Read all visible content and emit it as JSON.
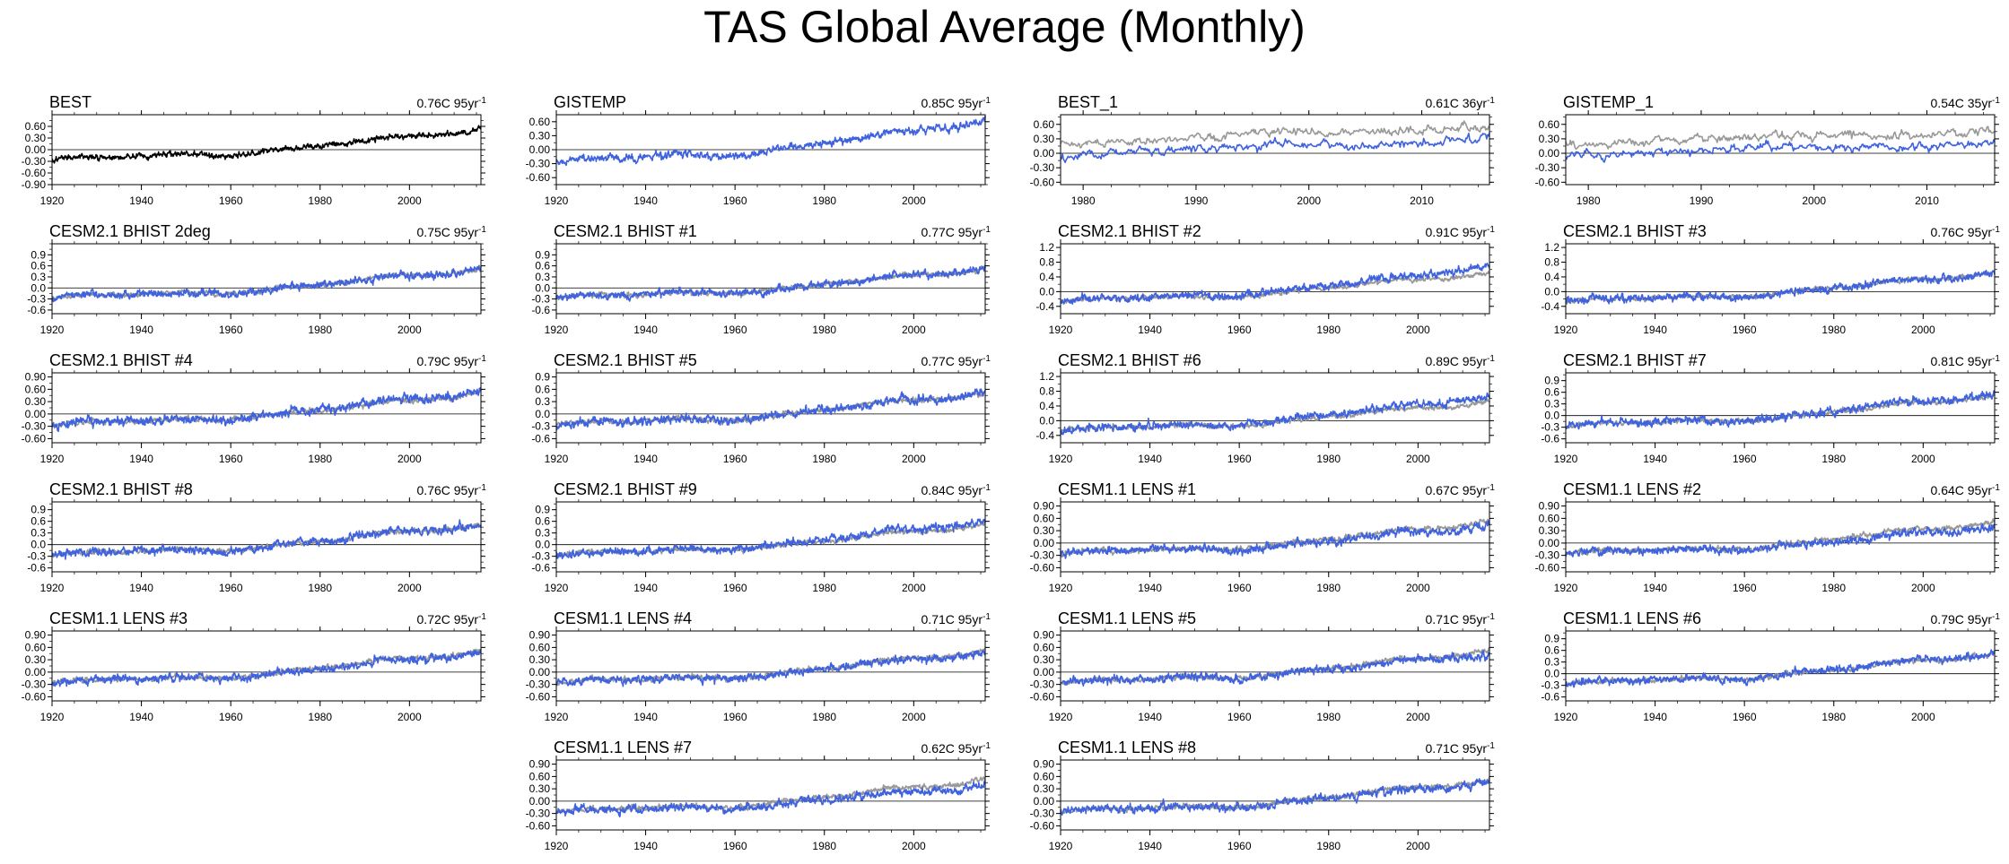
{
  "title": "TAS Global Average (Monthly)",
  "colors": {
    "obs": "#000000",
    "obs_ref": "#999999",
    "model": "#3f62de",
    "axis": "#000000"
  },
  "chart_data": [
    {
      "type": "line",
      "name": "BEST",
      "trend": "0.76C",
      "period": "95yr",
      "xlim": [
        1920,
        2016
      ],
      "xticks": [
        1920,
        1940,
        1960,
        1980,
        2000
      ],
      "ylim": [
        -0.9,
        0.9
      ],
      "yticks": [
        -0.9,
        -0.6,
        -0.3,
        0.0,
        0.3,
        0.6
      ],
      "ytick_labels": [
        "-0.90",
        "-0.60",
        "-0.30",
        "0.00",
        "0.30",
        "0.60"
      ],
      "series": [
        {
          "name": "BEST",
          "color": "#000000",
          "trend": 0.76,
          "noise": 0.08
        }
      ]
    },
    {
      "type": "line",
      "name": "GISTEMP",
      "trend": "0.85C",
      "period": "95yr",
      "xlim": [
        1920,
        2016
      ],
      "xticks": [
        1920,
        1940,
        1960,
        1980,
        2000
      ],
      "ylim": [
        -0.75,
        0.75
      ],
      "yticks": [
        -0.6,
        -0.3,
        0.0,
        0.3,
        0.6
      ],
      "ytick_labels": [
        "-0.60",
        "-0.30",
        "0.00",
        "0.30",
        "0.60"
      ],
      "series": [
        {
          "name": "GISTEMP",
          "color": "#3f62de",
          "trend": 0.85,
          "noise": 0.09
        }
      ]
    },
    {
      "type": "line",
      "name": "BEST_1",
      "trend": "0.61C",
      "period": "36yr",
      "xlim": [
        1978,
        2016
      ],
      "xticks": [
        1980,
        1990,
        2000,
        2010
      ],
      "ylim": [
        -0.65,
        0.8
      ],
      "yticks": [
        -0.6,
        -0.3,
        0.0,
        0.3,
        0.6
      ],
      "ytick_labels": [
        "-0.60",
        "-0.30",
        "0.00",
        "0.30",
        "0.60"
      ],
      "series": [
        {
          "name": "reference",
          "color": "#999999",
          "trend": 0.61,
          "offset": 0.2,
          "noise": 0.1
        },
        {
          "name": "BEST_1",
          "color": "#3f62de",
          "trend": 0.61,
          "offset": -0.05,
          "noise": 0.1
        }
      ]
    },
    {
      "type": "line",
      "name": "GISTEMP_1",
      "trend": "0.54C",
      "period": "35yr",
      "xlim": [
        1978,
        2016
      ],
      "xticks": [
        1980,
        1990,
        2000,
        2010
      ],
      "ylim": [
        -0.65,
        0.8
      ],
      "yticks": [
        -0.6,
        -0.3,
        0.0,
        0.3,
        0.6
      ],
      "ytick_labels": [
        "-0.60",
        "-0.30",
        "0.00",
        "0.30",
        "0.60"
      ],
      "series": [
        {
          "name": "reference",
          "color": "#999999",
          "trend": 0.54,
          "offset": 0.2,
          "noise": 0.1
        },
        {
          "name": "GISTEMP_1",
          "color": "#3f62de",
          "trend": 0.54,
          "offset": -0.05,
          "noise": 0.1
        }
      ]
    },
    {
      "type": "line",
      "name": "CESM2.1 BHIST 2deg",
      "trend": "0.75C",
      "period": "95yr",
      "xlim": [
        1920,
        2016
      ],
      "xticks": [
        1920,
        1940,
        1960,
        1980,
        2000
      ],
      "ylim": [
        -0.7,
        1.2
      ],
      "yticks": [
        -0.6,
        -0.3,
        0.0,
        0.3,
        0.6,
        0.9
      ],
      "ytick_labels": [
        "-0.6",
        "-0.3",
        "0.0",
        "0.3",
        "0.6",
        "0.9"
      ],
      "series": [
        {
          "name": "BEST",
          "color": "#999999",
          "trend": 0.76,
          "noise": 0.07
        },
        {
          "name": "CESM2.1 BHIST 2deg",
          "color": "#3f62de",
          "trend": 0.75,
          "noise": 0.12
        }
      ]
    },
    {
      "type": "line",
      "name": "CESM2.1 BHIST #1",
      "trend": "0.77C",
      "period": "95yr",
      "xlim": [
        1920,
        2016
      ],
      "xticks": [
        1920,
        1940,
        1960,
        1980,
        2000
      ],
      "ylim": [
        -0.7,
        1.2
      ],
      "yticks": [
        -0.6,
        -0.3,
        0.0,
        0.3,
        0.6,
        0.9
      ],
      "ytick_labels": [
        "-0.6",
        "-0.3",
        "0.0",
        "0.3",
        "0.6",
        "0.9"
      ],
      "series": [
        {
          "name": "BEST",
          "color": "#999999",
          "trend": 0.76,
          "noise": 0.07
        },
        {
          "name": "CESM2.1 BHIST #1",
          "color": "#3f62de",
          "trend": 0.77,
          "noise": 0.12
        }
      ]
    },
    {
      "type": "line",
      "name": "CESM2.1 BHIST #2",
      "trend": "0.91C",
      "period": "95yr",
      "xlim": [
        1920,
        2016
      ],
      "xticks": [
        1920,
        1940,
        1960,
        1980,
        2000
      ],
      "ylim": [
        -0.6,
        1.3
      ],
      "yticks": [
        -0.4,
        0.0,
        0.4,
        0.8,
        1.2
      ],
      "ytick_labels": [
        "-0.4",
        "0.0",
        "0.4",
        "0.8",
        "1.2"
      ],
      "series": [
        {
          "name": "BEST",
          "color": "#999999",
          "trend": 0.76,
          "noise": 0.07
        },
        {
          "name": "CESM2.1 BHIST #2",
          "color": "#3f62de",
          "trend": 0.91,
          "noise": 0.12
        }
      ]
    },
    {
      "type": "line",
      "name": "CESM2.1 BHIST #3",
      "trend": "0.76C",
      "period": "95yr",
      "xlim": [
        1920,
        2016
      ],
      "xticks": [
        1920,
        1940,
        1960,
        1980,
        2000
      ],
      "ylim": [
        -0.6,
        1.3
      ],
      "yticks": [
        -0.4,
        0.0,
        0.4,
        0.8,
        1.2
      ],
      "ytick_labels": [
        "-0.4",
        "0.0",
        "0.4",
        "0.8",
        "1.2"
      ],
      "series": [
        {
          "name": "BEST",
          "color": "#999999",
          "trend": 0.76,
          "noise": 0.07
        },
        {
          "name": "CESM2.1 BHIST #3",
          "color": "#3f62de",
          "trend": 0.76,
          "noise": 0.12
        }
      ]
    },
    {
      "type": "line",
      "name": "CESM2.1 BHIST #4",
      "trend": "0.79C",
      "period": "95yr",
      "xlim": [
        1920,
        2016
      ],
      "xticks": [
        1920,
        1940,
        1960,
        1980,
        2000
      ],
      "ylim": [
        -0.7,
        1.0
      ],
      "yticks": [
        -0.6,
        -0.3,
        0.0,
        0.3,
        0.6,
        0.9
      ],
      "ytick_labels": [
        "-0.60",
        "-0.30",
        "0.00",
        "0.30",
        "0.60",
        "0.90"
      ],
      "series": [
        {
          "name": "BEST",
          "color": "#999999",
          "trend": 0.76,
          "noise": 0.07
        },
        {
          "name": "CESM2.1 BHIST #4",
          "color": "#3f62de",
          "trend": 0.79,
          "noise": 0.12
        }
      ]
    },
    {
      "type": "line",
      "name": "CESM2.1 BHIST #5",
      "trend": "0.77C",
      "period": "95yr",
      "xlim": [
        1920,
        2016
      ],
      "xticks": [
        1920,
        1940,
        1960,
        1980,
        2000
      ],
      "ylim": [
        -0.7,
        1.0
      ],
      "yticks": [
        -0.6,
        -0.3,
        0.0,
        0.3,
        0.6,
        0.9
      ],
      "ytick_labels": [
        "-0.6",
        "-0.3",
        "0.0",
        "0.3",
        "0.6",
        "0.9"
      ],
      "series": [
        {
          "name": "BEST",
          "color": "#999999",
          "trend": 0.76,
          "noise": 0.07
        },
        {
          "name": "CESM2.1 BHIST #5",
          "color": "#3f62de",
          "trend": 0.77,
          "noise": 0.12
        }
      ]
    },
    {
      "type": "line",
      "name": "CESM2.1 BHIST #6",
      "trend": "0.89C",
      "period": "95yr",
      "xlim": [
        1920,
        2016
      ],
      "xticks": [
        1920,
        1940,
        1960,
        1980,
        2000
      ],
      "ylim": [
        -0.6,
        1.3
      ],
      "yticks": [
        -0.4,
        0.0,
        0.4,
        0.8,
        1.2
      ],
      "ytick_labels": [
        "-0.4",
        "0.0",
        "0.4",
        "0.8",
        "1.2"
      ],
      "series": [
        {
          "name": "BEST",
          "color": "#999999",
          "trend": 0.76,
          "noise": 0.07
        },
        {
          "name": "CESM2.1 BHIST #6",
          "color": "#3f62de",
          "trend": 0.89,
          "noise": 0.12
        }
      ]
    },
    {
      "type": "line",
      "name": "CESM2.1 BHIST #7",
      "trend": "0.81C",
      "period": "95yr",
      "xlim": [
        1920,
        2016
      ],
      "xticks": [
        1920,
        1940,
        1960,
        1980,
        2000
      ],
      "ylim": [
        -0.7,
        1.1
      ],
      "yticks": [
        -0.6,
        -0.3,
        0.0,
        0.3,
        0.6,
        0.9
      ],
      "ytick_labels": [
        "-0.6",
        "-0.3",
        "0.0",
        "0.3",
        "0.6",
        "0.9"
      ],
      "series": [
        {
          "name": "BEST",
          "color": "#999999",
          "trend": 0.76,
          "noise": 0.07
        },
        {
          "name": "CESM2.1 BHIST #7",
          "color": "#3f62de",
          "trend": 0.81,
          "noise": 0.12
        }
      ]
    },
    {
      "type": "line",
      "name": "CESM2.1 BHIST #8",
      "trend": "0.76C",
      "period": "95yr",
      "xlim": [
        1920,
        2016
      ],
      "xticks": [
        1920,
        1940,
        1960,
        1980,
        2000
      ],
      "ylim": [
        -0.7,
        1.1
      ],
      "yticks": [
        -0.6,
        -0.3,
        0.0,
        0.3,
        0.6,
        0.9
      ],
      "ytick_labels": [
        "-0.6",
        "-0.3",
        "0.0",
        "0.3",
        "0.6",
        "0.9"
      ],
      "series": [
        {
          "name": "BEST",
          "color": "#999999",
          "trend": 0.76,
          "noise": 0.07
        },
        {
          "name": "CESM2.1 BHIST #8",
          "color": "#3f62de",
          "trend": 0.76,
          "noise": 0.12
        }
      ]
    },
    {
      "type": "line",
      "name": "CESM2.1 BHIST #9",
      "trend": "0.84C",
      "period": "95yr",
      "xlim": [
        1920,
        2016
      ],
      "xticks": [
        1920,
        1940,
        1960,
        1980,
        2000
      ],
      "ylim": [
        -0.7,
        1.1
      ],
      "yticks": [
        -0.6,
        -0.3,
        0.0,
        0.3,
        0.6,
        0.9
      ],
      "ytick_labels": [
        "-0.6",
        "-0.3",
        "0.0",
        "0.3",
        "0.6",
        "0.9"
      ],
      "series": [
        {
          "name": "BEST",
          "color": "#999999",
          "trend": 0.76,
          "noise": 0.07
        },
        {
          "name": "CESM2.1 BHIST #9",
          "color": "#3f62de",
          "trend": 0.84,
          "noise": 0.12
        }
      ]
    },
    {
      "type": "line",
      "name": "CESM1.1 LENS #1",
      "trend": "0.67C",
      "period": "95yr",
      "xlim": [
        1920,
        2016
      ],
      "xticks": [
        1920,
        1940,
        1960,
        1980,
        2000
      ],
      "ylim": [
        -0.7,
        1.0
      ],
      "yticks": [
        -0.6,
        -0.3,
        0.0,
        0.3,
        0.6,
        0.9
      ],
      "ytick_labels": [
        "-0.60",
        "-0.30",
        "0.00",
        "0.30",
        "0.60",
        "0.90"
      ],
      "series": [
        {
          "name": "BEST",
          "color": "#999999",
          "trend": 0.76,
          "noise": 0.07
        },
        {
          "name": "CESM1.1 LENS #1",
          "color": "#3f62de",
          "trend": 0.67,
          "noise": 0.11
        }
      ]
    },
    {
      "type": "line",
      "name": "CESM1.1 LENS #2",
      "trend": "0.64C",
      "period": "95yr",
      "xlim": [
        1920,
        2016
      ],
      "xticks": [
        1920,
        1940,
        1960,
        1980,
        2000
      ],
      "ylim": [
        -0.7,
        1.0
      ],
      "yticks": [
        -0.6,
        -0.3,
        0.0,
        0.3,
        0.6,
        0.9
      ],
      "ytick_labels": [
        "-0.60",
        "-0.30",
        "0.00",
        "0.30",
        "0.60",
        "0.90"
      ],
      "series": [
        {
          "name": "BEST",
          "color": "#999999",
          "trend": 0.76,
          "noise": 0.07
        },
        {
          "name": "CESM1.1 LENS #2",
          "color": "#3f62de",
          "trend": 0.64,
          "noise": 0.11
        }
      ]
    },
    {
      "type": "line",
      "name": "CESM1.1 LENS #3",
      "trend": "0.72C",
      "period": "95yr",
      "xlim": [
        1920,
        2016
      ],
      "xticks": [
        1920,
        1940,
        1960,
        1980,
        2000
      ],
      "ylim": [
        -0.7,
        1.0
      ],
      "yticks": [
        -0.6,
        -0.3,
        0.0,
        0.3,
        0.6,
        0.9
      ],
      "ytick_labels": [
        "-0.60",
        "-0.30",
        "0.00",
        "0.30",
        "0.60",
        "0.90"
      ],
      "series": [
        {
          "name": "BEST",
          "color": "#999999",
          "trend": 0.76,
          "noise": 0.07
        },
        {
          "name": "CESM1.1 LENS #3",
          "color": "#3f62de",
          "trend": 0.72,
          "noise": 0.11
        }
      ]
    },
    {
      "type": "line",
      "name": "CESM1.1 LENS #4",
      "trend": "0.71C",
      "period": "95yr",
      "xlim": [
        1920,
        2016
      ],
      "xticks": [
        1920,
        1940,
        1960,
        1980,
        2000
      ],
      "ylim": [
        -0.7,
        1.0
      ],
      "yticks": [
        -0.6,
        -0.3,
        0.0,
        0.3,
        0.6,
        0.9
      ],
      "ytick_labels": [
        "-0.60",
        "-0.30",
        "0.00",
        "0.30",
        "0.60",
        "0.90"
      ],
      "series": [
        {
          "name": "BEST",
          "color": "#999999",
          "trend": 0.76,
          "noise": 0.07
        },
        {
          "name": "CESM1.1 LENS #4",
          "color": "#3f62de",
          "trend": 0.71,
          "noise": 0.11
        }
      ]
    },
    {
      "type": "line",
      "name": "CESM1.1 LENS #5",
      "trend": "0.71C",
      "period": "95yr",
      "xlim": [
        1920,
        2016
      ],
      "xticks": [
        1920,
        1940,
        1960,
        1980,
        2000
      ],
      "ylim": [
        -0.7,
        1.0
      ],
      "yticks": [
        -0.6,
        -0.3,
        0.0,
        0.3,
        0.6,
        0.9
      ],
      "ytick_labels": [
        "-0.60",
        "-0.30",
        "0.00",
        "0.30",
        "0.60",
        "0.90"
      ],
      "series": [
        {
          "name": "BEST",
          "color": "#999999",
          "trend": 0.76,
          "noise": 0.07
        },
        {
          "name": "CESM1.1 LENS #5",
          "color": "#3f62de",
          "trend": 0.71,
          "noise": 0.11
        }
      ]
    },
    {
      "type": "line",
      "name": "CESM1.1 LENS #6",
      "trend": "0.79C",
      "period": "95yr",
      "xlim": [
        1920,
        2016
      ],
      "xticks": [
        1920,
        1940,
        1960,
        1980,
        2000
      ],
      "ylim": [
        -0.7,
        1.1
      ],
      "yticks": [
        -0.6,
        -0.3,
        0.0,
        0.3,
        0.6,
        0.9
      ],
      "ytick_labels": [
        "-0.6",
        "-0.3",
        "0.0",
        "0.3",
        "0.6",
        "0.9"
      ],
      "series": [
        {
          "name": "BEST",
          "color": "#999999",
          "trend": 0.76,
          "noise": 0.07
        },
        {
          "name": "CESM1.1 LENS #6",
          "color": "#3f62de",
          "trend": 0.79,
          "noise": 0.11
        }
      ]
    },
    {
      "type": "line",
      "name": "CESM1.1 LENS #7",
      "trend": "0.62C",
      "period": "95yr",
      "xlim": [
        1920,
        2016
      ],
      "xticks": [
        1920,
        1940,
        1960,
        1980,
        2000
      ],
      "ylim": [
        -0.7,
        1.0
      ],
      "yticks": [
        -0.6,
        -0.3,
        0.0,
        0.3,
        0.6,
        0.9
      ],
      "ytick_labels": [
        "-0.60",
        "-0.30",
        "0.00",
        "0.30",
        "0.60",
        "0.90"
      ],
      "series": [
        {
          "name": "BEST",
          "color": "#999999",
          "trend": 0.76,
          "noise": 0.07
        },
        {
          "name": "CESM1.1 LENS #7",
          "color": "#3f62de",
          "trend": 0.62,
          "noise": 0.11
        }
      ]
    },
    {
      "type": "line",
      "name": "CESM1.1 LENS #8",
      "trend": "0.71C",
      "period": "95yr",
      "xlim": [
        1920,
        2016
      ],
      "xticks": [
        1920,
        1940,
        1960,
        1980,
        2000
      ],
      "ylim": [
        -0.7,
        1.0
      ],
      "yticks": [
        -0.6,
        -0.3,
        0.0,
        0.3,
        0.6,
        0.9
      ],
      "ytick_labels": [
        "-0.60",
        "-0.30",
        "0.00",
        "0.30",
        "0.60",
        "0.90"
      ],
      "series": [
        {
          "name": "BEST",
          "color": "#999999",
          "trend": 0.76,
          "noise": 0.07
        },
        {
          "name": "CESM1.1 LENS #8",
          "color": "#3f62de",
          "trend": 0.71,
          "noise": 0.11
        }
      ]
    }
  ]
}
